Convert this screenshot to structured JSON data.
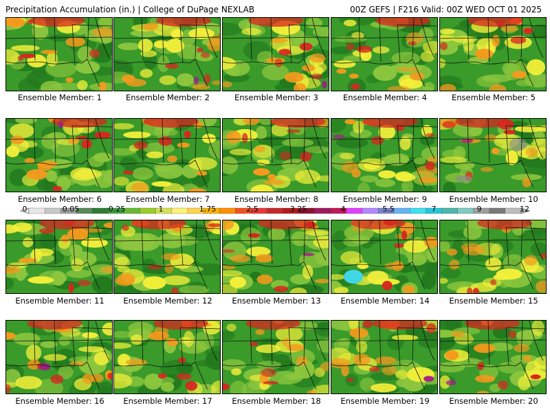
{
  "header": {
    "left": "Precipitation Accumulation (in.) | College of DuPage NEXLAB",
    "right": "00Z GEFS | F216 Valid: 00Z WED OCT 01 2025"
  },
  "members": [
    "Ensemble Member: 1",
    "Ensemble Member: 2",
    "Ensemble Member: 3",
    "Ensemble Member: 4",
    "Ensemble Member: 5",
    "Ensemble Member: 6",
    "Ensemble Member: 7",
    "Ensemble Member: 8",
    "Ensemble Member: 9",
    "Ensemble Member: 10",
    "Ensemble Member: 11",
    "Ensemble Member: 12",
    "Ensemble Member: 13",
    "Ensemble Member: 14",
    "Ensemble Member: 15",
    "Ensemble Member: 16",
    "Ensemble Member: 17",
    "Ensemble Member: 18",
    "Ensemble Member: 19",
    "Ensemble Member: 20"
  ],
  "legend": {
    "labels": [
      "0",
      "0.05",
      "0.25",
      "1",
      "1.75",
      "2.5",
      "3.25",
      "4",
      "5.5",
      "7",
      "9",
      "12"
    ],
    "colors": [
      "#e6e6e6",
      "#c8c8c8",
      "#a0a0a0",
      "#5a8a5a",
      "#2e7d32",
      "#43a047",
      "#66bb33",
      "#9ccc2a",
      "#d4e157",
      "#fff176",
      "#ffd54f",
      "#ffb300",
      "#ff8f00",
      "#f4511e",
      "#e53935",
      "#c62828",
      "#b71c1c",
      "#8e1030",
      "#a01a60",
      "#c2185b",
      "#e040fb",
      "#b388ff",
      "#7986cb",
      "#64b5f6",
      "#40e0f0",
      "#26c6da",
      "#4db6ac",
      "#80cbc4",
      "#9e9e9e",
      "#7a7a7a",
      "#bdbdbd"
    ]
  },
  "map_colors": {
    "base": "#3a9a2a",
    "dark_green": "#237a1e",
    "light_green": "#8cc63e",
    "yellow": "#f3ef3a",
    "orange": "#f59a1d",
    "red": "#d8261f",
    "magenta": "#a3188a",
    "gray": "#8a8a8a",
    "cyan": "#3fd6e6"
  }
}
